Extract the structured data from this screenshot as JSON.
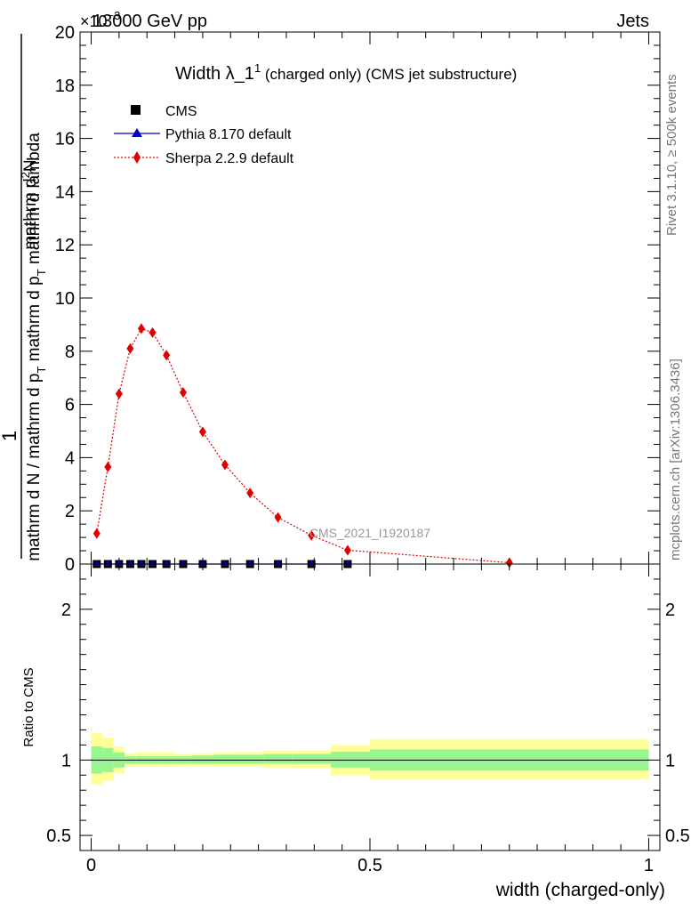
{
  "header": {
    "energy_label": "13000 GeV pp",
    "process_label": "Jets",
    "exponent_label": "×10",
    "exponent_power": "−3"
  },
  "side_labels": {
    "rivet": "Rivet 3.1.10, ≥ 500k events",
    "mcplots": "mcplots.cern.ch [arXiv:1306.3436]"
  },
  "chart_data": [
    {
      "type": "line",
      "panel": "main",
      "title_main": "Width λ_1",
      "title_sup": "1",
      "title_rest": " (charged only) (CMS jet substructure)",
      "ylabel_top": "1",
      "ylabel_bottom_parts": [
        "mathrm d N / mathrm d p",
        "T",
        " mathrm d p",
        "T",
        " mathrm d lambda"
      ],
      "ylabel_numerator": "mathrm d",
      "ylabel_numerator_sup": "2",
      "ylabel_numerator_after": "N",
      "ylim": [
        0,
        20
      ],
      "xlim": [
        -0.02,
        1.02
      ],
      "yticks": [
        0,
        2,
        4,
        6,
        8,
        10,
        12,
        14,
        16,
        18,
        20
      ],
      "watermark": "CMS_2021_I1920187",
      "legend_position": "top-left",
      "colors": {
        "cms": "#000000",
        "pythia": "#0000cc",
        "sherpa": "#e00000"
      },
      "series": [
        {
          "name": "CMS",
          "marker": "square",
          "x": [
            0.01,
            0.03,
            0.05,
            0.07,
            0.09,
            0.11,
            0.135,
            0.165,
            0.2,
            0.24,
            0.285,
            0.335,
            0.395,
            0.46
          ],
          "y": [
            0,
            0,
            0,
            0,
            0,
            0,
            0,
            0,
            0,
            0,
            0,
            0,
            0,
            0
          ]
        },
        {
          "name": "Pythia 8.170 default",
          "marker": "triangle",
          "x": [
            0.01,
            0.03,
            0.05,
            0.07,
            0.09,
            0.11,
            0.135,
            0.165,
            0.2,
            0.24,
            0.285,
            0.335,
            0.395,
            0.46
          ],
          "y": [
            0,
            0,
            0,
            0,
            0,
            0,
            0,
            0,
            0,
            0,
            0,
            0,
            0,
            0
          ]
        },
        {
          "name": "Sherpa 2.2.9 default",
          "marker": "diamond",
          "x": [
            0.01,
            0.03,
            0.05,
            0.07,
            0.09,
            0.11,
            0.135,
            0.165,
            0.2,
            0.24,
            0.285,
            0.335,
            0.395,
            0.46,
            0.75
          ],
          "y": [
            1.15,
            3.65,
            6.4,
            8.1,
            8.85,
            8.7,
            7.85,
            6.45,
            4.97,
            3.73,
            2.67,
            1.75,
            1.08,
            0.52,
            0.05
          ]
        }
      ]
    },
    {
      "type": "area",
      "panel": "ratio",
      "ylabel": "Ratio to CMS",
      "ylim": [
        0.4,
        2.3
      ],
      "xlim": [
        -0.02,
        1.02
      ],
      "xlabel": "width (charged-only)",
      "xticks": [
        0,
        0.5,
        1
      ],
      "xtick_labels": [
        "0",
        "0.5",
        "1"
      ],
      "yticks": [
        0.5,
        1,
        2
      ],
      "ytick_labels": [
        "0.5",
        "1",
        "2"
      ],
      "reference_line": 1,
      "colors": {
        "inner_band": "#99f58f",
        "outer_band": "#ffff99"
      },
      "bins": [
        0,
        0.02,
        0.04,
        0.06,
        0.08,
        0.1,
        0.12,
        0.15,
        0.18,
        0.22,
        0.26,
        0.31,
        0.36,
        0.43,
        0.5,
        1.0
      ],
      "inner_band": {
        "low": [
          0.91,
          0.92,
          0.95,
          0.975,
          0.975,
          0.975,
          0.975,
          0.975,
          0.975,
          0.975,
          0.975,
          0.975,
          0.975,
          0.95,
          0.93
        ],
        "high": [
          1.09,
          1.08,
          1.05,
          1.025,
          1.025,
          1.025,
          1.025,
          1.025,
          1.03,
          1.035,
          1.035,
          1.04,
          1.04,
          1.055,
          1.07
        ]
      },
      "outer_band": {
        "low": [
          0.84,
          0.86,
          0.91,
          0.955,
          0.955,
          0.955,
          0.955,
          0.96,
          0.96,
          0.955,
          0.955,
          0.95,
          0.945,
          0.9,
          0.87
        ],
        "high": [
          1.18,
          1.15,
          1.09,
          1.045,
          1.05,
          1.05,
          1.05,
          1.04,
          1.045,
          1.05,
          1.055,
          1.06,
          1.065,
          1.1,
          1.14
        ]
      }
    }
  ]
}
